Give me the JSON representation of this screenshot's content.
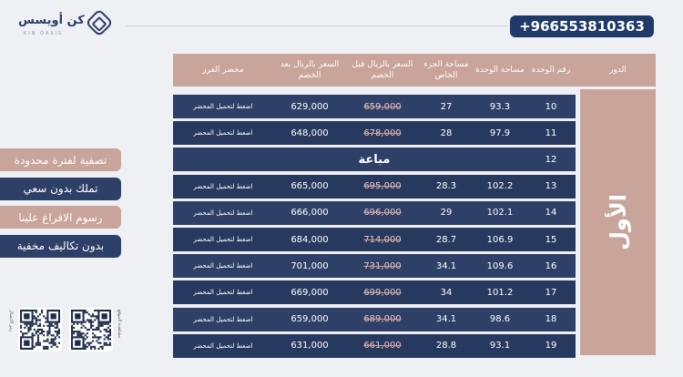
{
  "brand": {
    "name": "كن أويسس",
    "subtitle": "KIN OASIS"
  },
  "contact": {
    "phone": "+966553810363"
  },
  "table": {
    "headers": {
      "floor": "الدور",
      "unit_no": "رقم الوحدة",
      "unit_area": "مساحة الوحدة",
      "private_area": "مساحة الجزء الخاص",
      "price_before": "السعر بالريال قبل الخصم",
      "price_after": "السعر بالريال بعد الخصم",
      "sort_record": "محضر الفرز"
    },
    "floor_name": "الأول",
    "rows": [
      {
        "unit": "10",
        "area": "93.3",
        "private": "27",
        "before": "659,000",
        "after": "629,000",
        "action": "اضغط لتحميل المحضر"
      },
      {
        "unit": "11",
        "area": "97.9",
        "private": "28",
        "before": "678,000",
        "after": "648,000",
        "action": "اضغط لتحميل المحضر"
      },
      {
        "unit": "12",
        "sold": "مباعة"
      },
      {
        "unit": "13",
        "area": "102.2",
        "private": "28.3",
        "before": "695,000",
        "after": "665,000",
        "action": "اضغط لتحميل المحضر"
      },
      {
        "unit": "14",
        "area": "102.1",
        "private": "29",
        "before": "696,000",
        "after": "666,000",
        "action": "اضغط لتحميل المحضر"
      },
      {
        "unit": "15",
        "area": "106.9",
        "private": "28.7",
        "before": "714,000",
        "after": "684,000",
        "action": "اضغط لتحميل المحضر"
      },
      {
        "unit": "16",
        "area": "109.6",
        "private": "34.1",
        "before": "731,000",
        "after": "701,000",
        "action": "اضغط لتحميل المحضر"
      },
      {
        "unit": "17",
        "area": "101.2",
        "private": "34",
        "before": "699,000",
        "after": "669,000",
        "action": "اضغط لتحميل المحضر"
      },
      {
        "unit": "18",
        "area": "98.6",
        "private": "34.1",
        "before": "689,000",
        "after": "659,000",
        "action": "اضغط لتحميل المحضر"
      },
      {
        "unit": "19",
        "area": "93.1",
        "private": "28.8",
        "before": "661,000",
        "after": "631,000",
        "action": "اضغط لتحميل المحضر"
      }
    ]
  },
  "offers": [
    {
      "text": "تصفية لفترة محدودة",
      "color": "#c8a49a"
    },
    {
      "text": "تملك بدون سعي",
      "color": "#2e3f68"
    },
    {
      "text": "رسوم الافراغ علينا",
      "color": "#c8a49a"
    },
    {
      "text": "بدون تكاليف مخفية",
      "color": "#2e3f68"
    }
  ],
  "qr_codes": [
    {
      "name": "qr-code-left",
      "caption": "رمز الاتصال"
    },
    {
      "name": "qr-code-right",
      "caption": "مشاهدة الموقع"
    }
  ]
}
